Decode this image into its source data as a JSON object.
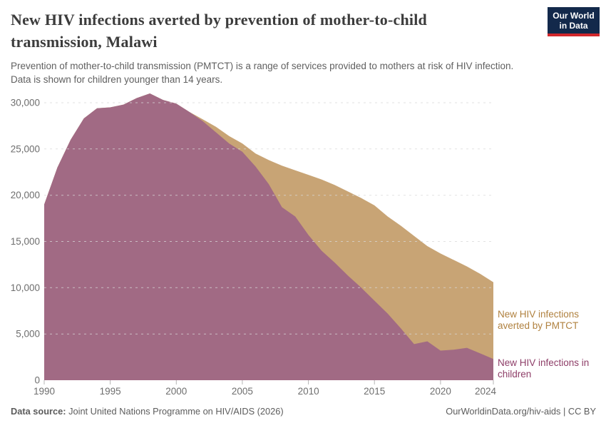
{
  "header": {
    "title_lines": [
      "New HIV infections averted by prevention of mother-to-child",
      "transmission, Malawi"
    ],
    "subtitle_lines": [
      "Prevention of mother-to-child transmission (PMTCT) is a range of services provided to mothers at risk of HIV infection.",
      "Data is shown for children younger than 14 years."
    ],
    "logo": {
      "line1": "Our World",
      "line2": "in Data"
    }
  },
  "footer": {
    "source_label": "Data source:",
    "source_text": " Joint United Nations Programme on HIV/AIDS (2026)",
    "link_text": "OurWorldinData.org/hiv-aids | CC BY"
  },
  "colors": {
    "children_area": "#a16a84",
    "averted_area": "#c8a475",
    "children_label": "#8e3e68",
    "averted_label": "#b0813f",
    "gridline": "#d8d8d8",
    "tick_mark": "#b5b5b5"
  },
  "chart_data": {
    "type": "area",
    "stacked": true,
    "title": "New HIV infections averted by prevention of mother-to-child transmission, Malawi",
    "xlabel": "",
    "ylabel": "",
    "grid": "dashed-horizontal",
    "legend_position": "right-annotations",
    "x": [
      1990,
      1991,
      1992,
      1993,
      1994,
      1995,
      1996,
      1997,
      1998,
      1999,
      2000,
      2001,
      2002,
      2003,
      2004,
      2005,
      2006,
      2007,
      2008,
      2009,
      2010,
      2011,
      2012,
      2013,
      2014,
      2015,
      2016,
      2017,
      2018,
      2019,
      2020,
      2021,
      2022,
      2023,
      2024
    ],
    "series": [
      {
        "name": "New HIV infections in children",
        "color": "#a16a84",
        "label_color": "#8e3e68",
        "values": [
          19000,
          23000,
          26000,
          28300,
          29400,
          29500,
          29800,
          30500,
          31000,
          30300,
          29900,
          29000,
          28000,
          26800,
          25600,
          24700,
          23100,
          21200,
          18700,
          17700,
          15700,
          14000,
          12700,
          11300,
          10000,
          8600,
          7200,
          5600,
          3900,
          4200,
          3200,
          3300,
          3500,
          2900,
          2300
        ]
      },
      {
        "name": "New HIV infections averted by PMTCT",
        "color": "#c8a475",
        "label_color": "#b0813f",
        "values": [
          0,
          0,
          0,
          0,
          0,
          0,
          0,
          0,
          0,
          0,
          0,
          0,
          200,
          600,
          800,
          900,
          1400,
          2600,
          4500,
          5000,
          6500,
          7700,
          8400,
          9100,
          9700,
          10300,
          10500,
          11100,
          11700,
          10300,
          10500,
          9700,
          8800,
          8600,
          8300
        ]
      }
    ],
    "x_ticks": [
      1990,
      1995,
      2000,
      2005,
      2010,
      2015,
      2020,
      2024
    ],
    "y_ticks": [
      0,
      5000,
      10000,
      15000,
      20000,
      25000,
      30000
    ],
    "xlim": [
      1990,
      2024
    ],
    "ylim": [
      0,
      31000
    ]
  }
}
